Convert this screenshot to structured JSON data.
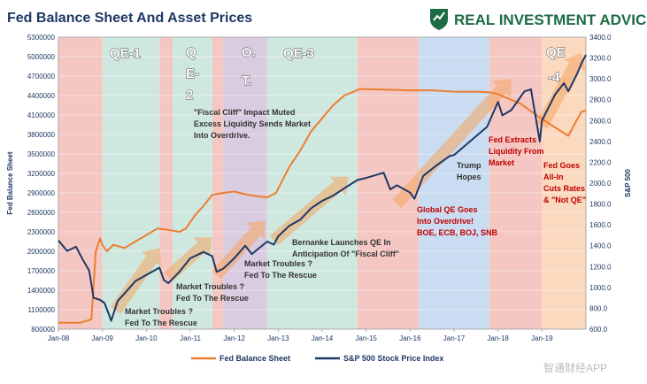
{
  "chart_data": {
    "type": "line",
    "title": "Fed Balance Sheet And Asset Prices",
    "ylabel_left": "Fed Balance Sheet",
    "ylabel_right": "S&P 500",
    "ylim_left": [
      800000,
      5300000
    ],
    "ylim_right": [
      600,
      3400
    ],
    "x_range": [
      2008.0,
      2020.0
    ],
    "x_ticks": [
      {
        "label": "Jan-08",
        "value": 2008
      },
      {
        "label": "Jan-09",
        "value": 2009
      },
      {
        "label": "Jan-10",
        "value": 2010
      },
      {
        "label": "Jan-11",
        "value": 2011
      },
      {
        "label": "Jan-12",
        "value": 2012
      },
      {
        "label": "Jan-13",
        "value": 2013
      },
      {
        "label": "Jan-14",
        "value": 2014
      },
      {
        "label": "Jan-15",
        "value": 2015
      },
      {
        "label": "Jan-16",
        "value": 2016
      },
      {
        "label": "Jan-17",
        "value": 2017
      },
      {
        "label": "Jan-18",
        "value": 2018
      },
      {
        "label": "Jan-19",
        "value": 2019
      }
    ],
    "left_ticks": [
      "800000",
      "1100000",
      "1400000",
      "1700000",
      "2000000",
      "2300000",
      "2600000",
      "2900000",
      "3200000",
      "3500000",
      "3800000",
      "4100000",
      "4400000",
      "4700000",
      "5000000",
      "5300000"
    ],
    "right_ticks": [
      "600.0",
      "800.0",
      "1000.0",
      "1200.0",
      "1400.0",
      "1600.0",
      "1800.0",
      "2000.0",
      "2200.0",
      "2400.0",
      "2600.0",
      "2800.0",
      "3000.0",
      "3200.0",
      "3400.0"
    ],
    "series": [
      {
        "name": "Fed Balance Sheet",
        "axis": "left",
        "color": "#ed7d31",
        "points": [
          [
            2008.0,
            900000
          ],
          [
            2008.5,
            900000
          ],
          [
            2008.75,
            950000
          ],
          [
            2008.85,
            2000000
          ],
          [
            2008.95,
            2200000
          ],
          [
            2009.0,
            2100000
          ],
          [
            2009.1,
            2000000
          ],
          [
            2009.25,
            2100000
          ],
          [
            2009.5,
            2050000
          ],
          [
            2009.75,
            2150000
          ],
          [
            2010.0,
            2250000
          ],
          [
            2010.25,
            2350000
          ],
          [
            2010.5,
            2330000
          ],
          [
            2010.75,
            2300000
          ],
          [
            2010.9,
            2350000
          ],
          [
            2011.1,
            2550000
          ],
          [
            2011.3,
            2700000
          ],
          [
            2011.5,
            2870000
          ],
          [
            2011.75,
            2900000
          ],
          [
            2012.0,
            2920000
          ],
          [
            2012.25,
            2880000
          ],
          [
            2012.5,
            2850000
          ],
          [
            2012.75,
            2830000
          ],
          [
            2012.95,
            2900000
          ],
          [
            2013.1,
            3100000
          ],
          [
            2013.25,
            3300000
          ],
          [
            2013.5,
            3550000
          ],
          [
            2013.75,
            3850000
          ],
          [
            2014.0,
            4050000
          ],
          [
            2014.25,
            4250000
          ],
          [
            2014.5,
            4400000
          ],
          [
            2014.75,
            4470000
          ],
          [
            2014.85,
            4500000
          ],
          [
            2015.0,
            4500000
          ],
          [
            2015.5,
            4490000
          ],
          [
            2016.0,
            4480000
          ],
          [
            2016.5,
            4480000
          ],
          [
            2017.0,
            4460000
          ],
          [
            2017.5,
            4460000
          ],
          [
            2017.8,
            4450000
          ],
          [
            2018.0,
            4420000
          ],
          [
            2018.25,
            4350000
          ],
          [
            2018.5,
            4280000
          ],
          [
            2018.75,
            4160000
          ],
          [
            2019.0,
            4040000
          ],
          [
            2019.25,
            3930000
          ],
          [
            2019.5,
            3820000
          ],
          [
            2019.6,
            3780000
          ],
          [
            2019.75,
            3970000
          ],
          [
            2019.9,
            4150000
          ],
          [
            2020.0,
            4170000
          ]
        ]
      },
      {
        "name": "S&P 500 Stock Price Index",
        "axis": "right",
        "color": "#1f3864",
        "points": [
          [
            2008.0,
            1450
          ],
          [
            2008.2,
            1350
          ],
          [
            2008.4,
            1390
          ],
          [
            2008.55,
            1270
          ],
          [
            2008.7,
            1160
          ],
          [
            2008.8,
            900
          ],
          [
            2008.95,
            880
          ],
          [
            2009.05,
            850
          ],
          [
            2009.15,
            740
          ],
          [
            2009.2,
            680
          ],
          [
            2009.35,
            870
          ],
          [
            2009.5,
            940
          ],
          [
            2009.75,
            1060
          ],
          [
            2010.0,
            1120
          ],
          [
            2010.3,
            1190
          ],
          [
            2010.4,
            1070
          ],
          [
            2010.5,
            1040
          ],
          [
            2010.75,
            1150
          ],
          [
            2011.0,
            1280
          ],
          [
            2011.3,
            1340
          ],
          [
            2011.5,
            1300
          ],
          [
            2011.6,
            1150
          ],
          [
            2011.75,
            1180
          ],
          [
            2012.0,
            1280
          ],
          [
            2012.25,
            1400
          ],
          [
            2012.4,
            1320
          ],
          [
            2012.75,
            1440
          ],
          [
            2012.9,
            1410
          ],
          [
            2013.0,
            1490
          ],
          [
            2013.25,
            1590
          ],
          [
            2013.5,
            1650
          ],
          [
            2013.75,
            1760
          ],
          [
            2014.0,
            1830
          ],
          [
            2014.25,
            1880
          ],
          [
            2014.5,
            1950
          ],
          [
            2014.8,
            2030
          ],
          [
            2015.0,
            2050
          ],
          [
            2015.4,
            2100
          ],
          [
            2015.55,
            1940
          ],
          [
            2015.7,
            1980
          ],
          [
            2016.0,
            1910
          ],
          [
            2016.1,
            1850
          ],
          [
            2016.3,
            2070
          ],
          [
            2016.6,
            2170
          ],
          [
            2016.9,
            2260
          ],
          [
            2017.0,
            2270
          ],
          [
            2017.5,
            2450
          ],
          [
            2017.75,
            2540
          ],
          [
            2018.0,
            2780
          ],
          [
            2018.1,
            2650
          ],
          [
            2018.3,
            2700
          ],
          [
            2018.6,
            2880
          ],
          [
            2018.75,
            2900
          ],
          [
            2018.95,
            2400
          ],
          [
            2019.0,
            2600
          ],
          [
            2019.3,
            2850
          ],
          [
            2019.5,
            2960
          ],
          [
            2019.6,
            2880
          ],
          [
            2019.8,
            3050
          ],
          [
            2019.9,
            3150
          ],
          [
            2020.0,
            3230
          ]
        ]
      }
    ],
    "shaded_periods": [
      {
        "start": 2008.0,
        "end": 2009.0,
        "color": "#f4c7c3"
      },
      {
        "start": 2009.0,
        "end": 2010.3,
        "color": "#cfe8df"
      },
      {
        "start": 2010.3,
        "end": 2010.6,
        "color": "#f4c7c3"
      },
      {
        "start": 2010.6,
        "end": 2011.5,
        "color": "#cfe8df"
      },
      {
        "start": 2011.5,
        "end": 2011.75,
        "color": "#f4c7c3"
      },
      {
        "start": 2011.75,
        "end": 2012.75,
        "color": "#d9cbe0"
      },
      {
        "start": 2012.75,
        "end": 2014.8,
        "color": "#cfe8df"
      },
      {
        "start": 2014.8,
        "end": 2016.2,
        "color": "#f4c7c3"
      },
      {
        "start": 2016.2,
        "end": 2017.8,
        "color": "#c9dcf1"
      },
      {
        "start": 2017.8,
        "end": 2019.0,
        "color": "#f4c7c3"
      },
      {
        "start": 2019.0,
        "end": 2020.0,
        "color": "#fbd9bf"
      }
    ],
    "period_labels": [
      "QE-1",
      "Q",
      "E-",
      "2",
      "O.",
      "T.",
      "QE-3",
      "QE",
      "-4"
    ],
    "annotations_dark": [
      "\"Fiscal Cliff\" Impact Muted",
      "Excess Liquidity Sends Market",
      "Into Overdrive.",
      "Bernanke Launches QE In",
      "Anticipation Of \"Fiscal Cliff\"",
      "Market Troubles ?",
      "Fed To The Rescue",
      "Market Troubles ?",
      "Fed To The Rescue",
      "Market Troubles ?",
      "Fed To The Rescue",
      "Trump",
      "Hopes"
    ],
    "annotations_red": [
      "Global QE Goes",
      "Into Overdrive!",
      "BOE, ECB, BOJ, SNB",
      "Fed Extracts",
      "Liquidity From",
      "Market",
      "Fed Goes",
      "All-In",
      "Cuts Rates",
      "& \"Not QE\""
    ],
    "legend": [
      "Fed Balance Sheet",
      "S&P 500 Stock Price Index"
    ],
    "grid": true
  },
  "branding": {
    "logo_text": "REAL INVESTMENT ADVICE",
    "watermark": "智通财经APP"
  },
  "colors": {
    "title": "#1f3864",
    "fed_line": "#ed7d31",
    "spx_line": "#1f3864",
    "arrow": "#f4a460"
  }
}
